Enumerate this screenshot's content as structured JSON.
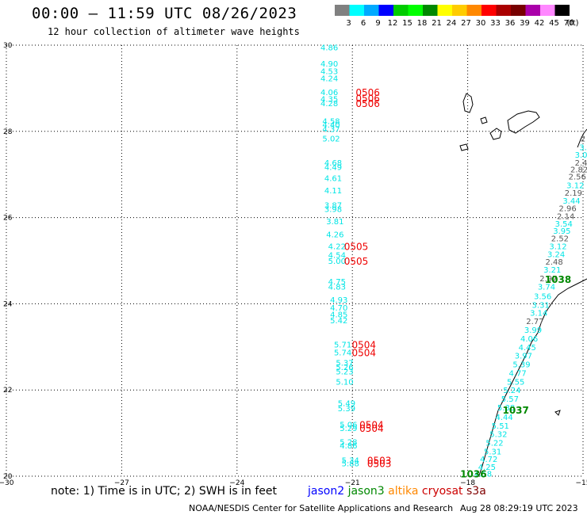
{
  "header": {
    "title": "00:00 – 11:59 UTC 08/26/2023",
    "subtitle": "12 hour collection of altimeter wave heights"
  },
  "legend": {
    "unit": "(ft)",
    "bins": [
      {
        "label": "3",
        "color": "#808080"
      },
      {
        "label": "6",
        "color": "#00ffff"
      },
      {
        "label": "9",
        "color": "#00aaff"
      },
      {
        "label": "12",
        "color": "#0000ff"
      },
      {
        "label": "15",
        "color": "#00cc00"
      },
      {
        "label": "18",
        "color": "#00ff00"
      },
      {
        "label": "21",
        "color": "#008800"
      },
      {
        "label": "24",
        "color": "#ffff00"
      },
      {
        "label": "27",
        "color": "#ffcc00"
      },
      {
        "label": "30",
        "color": "#ff8800"
      },
      {
        "label": "33",
        "color": "#ff0000"
      },
      {
        "label": "36",
        "color": "#aa0000"
      },
      {
        "label": "39",
        "color": "#770000"
      },
      {
        "label": "42",
        "color": "#aa00aa"
      },
      {
        "label": "45",
        "color": "#ff88ff"
      },
      {
        "label": "70",
        "color": "#000000"
      }
    ]
  },
  "axes": {
    "lon_labels": [
      "−30",
      "−27",
      "−24",
      "−21",
      "−18",
      "−15"
    ],
    "lat_labels": [
      "20",
      "22",
      "24",
      "26",
      "28",
      "30"
    ],
    "lon_range": [
      -30,
      -15
    ],
    "lat_range": [
      20,
      30
    ]
  },
  "colors": {
    "jason2": "#0000ff",
    "jason3": "#008800",
    "altika": "#ff8800",
    "cryosat": "#cc0000",
    "s3a": "#800000",
    "cyan_track": "#00e5e5",
    "gray_track": "#555555",
    "time_red": "#ee0000",
    "time_green": "#008800"
  },
  "footer": {
    "note": "note:  1) Time is in UTC; 2) SWH is in feet",
    "missions": [
      "jason2",
      "jason3",
      "altika",
      "cryosat",
      "s3a"
    ],
    "credit": "NOAA/NESDIS Center for Satellite Applications and Research",
    "timestamp": "Aug 28 08:29:19 UTC 2023"
  },
  "chart_data": {
    "type": "scatter",
    "track_west": [
      {
        "lon": -21.6,
        "lat": 29.95,
        "swh": "4.86"
      },
      {
        "lon": -21.6,
        "lat": 29.58,
        "swh": "4.90"
      },
      {
        "lon": -21.6,
        "lat": 29.4,
        "swh": "4.53"
      },
      {
        "lon": -21.6,
        "lat": 29.24,
        "swh": "4.24"
      },
      {
        "lon": -21.6,
        "lat": 28.92,
        "swh": "4.06"
      },
      {
        "lon": -21.6,
        "lat": 28.76,
        "swh": "4.35"
      },
      {
        "lon": -21.6,
        "lat": 28.66,
        "swh": "4.28"
      },
      {
        "lon": -21.55,
        "lat": 28.24,
        "swh": "4.58"
      },
      {
        "lon": -21.55,
        "lat": 28.16,
        "swh": "4.40"
      },
      {
        "lon": -21.55,
        "lat": 28.06,
        "swh": "4.37"
      },
      {
        "lon": -21.55,
        "lat": 27.84,
        "swh": "5.02"
      },
      {
        "lon": -21.5,
        "lat": 27.28,
        "swh": "4.68"
      },
      {
        "lon": -21.5,
        "lat": 27.18,
        "swh": "4.49"
      },
      {
        "lon": -21.5,
        "lat": 26.92,
        "swh": "4.61"
      },
      {
        "lon": -21.5,
        "lat": 26.64,
        "swh": "4.11"
      },
      {
        "lon": -21.5,
        "lat": 26.3,
        "swh": "3.87"
      },
      {
        "lon": -21.5,
        "lat": 26.2,
        "swh": "3.98"
      },
      {
        "lon": -21.45,
        "lat": 25.92,
        "swh": "3.81"
      },
      {
        "lon": -21.45,
        "lat": 25.62,
        "swh": "4.26"
      },
      {
        "lon": -21.4,
        "lat": 25.34,
        "swh": "4.22"
      },
      {
        "lon": -21.4,
        "lat": 25.14,
        "swh": "4.54"
      },
      {
        "lon": -21.4,
        "lat": 25.0,
        "swh": "5.00"
      },
      {
        "lon": -21.4,
        "lat": 24.52,
        "swh": "4.75"
      },
      {
        "lon": -21.4,
        "lat": 24.4,
        "swh": "4.83"
      },
      {
        "lon": -21.35,
        "lat": 24.1,
        "swh": "4.93"
      },
      {
        "lon": -21.35,
        "lat": 23.92,
        "swh": "4.70"
      },
      {
        "lon": -21.35,
        "lat": 23.76,
        "swh": "4.85"
      },
      {
        "lon": -21.35,
        "lat": 23.62,
        "swh": "5.42"
      },
      {
        "lon": -21.25,
        "lat": 23.06,
        "swh": "5.71"
      },
      {
        "lon": -21.25,
        "lat": 22.88,
        "swh": "5.74"
      },
      {
        "lon": -21.2,
        "lat": 22.64,
        "swh": "5.37"
      },
      {
        "lon": -21.2,
        "lat": 22.54,
        "swh": "5.26"
      },
      {
        "lon": -21.2,
        "lat": 22.44,
        "swh": "5.23"
      },
      {
        "lon": -21.2,
        "lat": 22.2,
        "swh": "5.10"
      },
      {
        "lon": -21.15,
        "lat": 21.7,
        "swh": "5.49"
      },
      {
        "lon": -21.15,
        "lat": 21.58,
        "swh": "5.39"
      },
      {
        "lon": -21.1,
        "lat": 21.2,
        "swh": "5.06"
      },
      {
        "lon": -21.1,
        "lat": 21.12,
        "swh": "5.29"
      },
      {
        "lon": -21.1,
        "lat": 20.8,
        "swh": "5.28"
      },
      {
        "lon": -21.1,
        "lat": 20.72,
        "swh": "4.86"
      },
      {
        "lon": -21.05,
        "lat": 20.38,
        "swh": "5.34"
      },
      {
        "lon": -21.05,
        "lat": 20.3,
        "swh": "5.88"
      }
    ],
    "track_east": [
      {
        "lon": -15.0,
        "lat": 27.84,
        "swh": "2",
        "c": "gray"
      },
      {
        "lon": -15.0,
        "lat": 27.64,
        "swh": "3.",
        "c": "cyan"
      },
      {
        "lon": -15.05,
        "lat": 27.46,
        "swh": "3.0",
        "c": "cyan"
      },
      {
        "lon": -15.05,
        "lat": 27.28,
        "swh": "2.4",
        "c": "gray"
      },
      {
        "lon": -15.1,
        "lat": 27.12,
        "swh": "2.82",
        "c": "gray"
      },
      {
        "lon": -15.15,
        "lat": 26.96,
        "swh": "2.56",
        "c": "gray"
      },
      {
        "lon": -15.2,
        "lat": 26.76,
        "swh": "3.12",
        "c": "cyan"
      },
      {
        "lon": -15.25,
        "lat": 26.58,
        "swh": "2.19",
        "c": "gray"
      },
      {
        "lon": -15.3,
        "lat": 26.4,
        "swh": "3.44",
        "c": "cyan"
      },
      {
        "lon": -15.4,
        "lat": 26.22,
        "swh": "2.96",
        "c": "gray"
      },
      {
        "lon": -15.45,
        "lat": 26.04,
        "swh": "2.14",
        "c": "gray"
      },
      {
        "lon": -15.5,
        "lat": 25.86,
        "swh": "3.54",
        "c": "cyan"
      },
      {
        "lon": -15.55,
        "lat": 25.7,
        "swh": "3.95",
        "c": "cyan"
      },
      {
        "lon": -15.6,
        "lat": 25.52,
        "swh": "2.52",
        "c": "gray"
      },
      {
        "lon": -15.65,
        "lat": 25.34,
        "swh": "3.12",
        "c": "cyan"
      },
      {
        "lon": -15.7,
        "lat": 25.16,
        "swh": "3.24",
        "c": "cyan"
      },
      {
        "lon": -15.75,
        "lat": 24.98,
        "swh": "2.48",
        "c": "gray"
      },
      {
        "lon": -15.8,
        "lat": 24.8,
        "swh": "3.21",
        "c": "cyan"
      },
      {
        "lon": -15.9,
        "lat": 24.6,
        "swh": "2.97",
        "c": "gray"
      },
      {
        "lon": -15.95,
        "lat": 24.4,
        "swh": "3.74",
        "c": "cyan"
      },
      {
        "lon": -16.05,
        "lat": 24.18,
        "swh": "3.56",
        "c": "cyan"
      },
      {
        "lon": -16.1,
        "lat": 23.98,
        "swh": "3.31",
        "c": "cyan"
      },
      {
        "lon": -16.15,
        "lat": 23.8,
        "swh": "3.14",
        "c": "cyan"
      },
      {
        "lon": -16.25,
        "lat": 23.6,
        "swh": "2.77",
        "c": "gray"
      },
      {
        "lon": -16.3,
        "lat": 23.4,
        "swh": "3.99",
        "c": "cyan"
      },
      {
        "lon": -16.4,
        "lat": 23.2,
        "swh": "4.06",
        "c": "cyan"
      },
      {
        "lon": -16.45,
        "lat": 23.0,
        "swh": "4.45",
        "c": "cyan"
      },
      {
        "lon": -16.55,
        "lat": 22.8,
        "swh": "3.97",
        "c": "cyan"
      },
      {
        "lon": -16.6,
        "lat": 22.6,
        "swh": "5.39",
        "c": "cyan"
      },
      {
        "lon": -16.7,
        "lat": 22.4,
        "swh": "4.77",
        "c": "cyan"
      },
      {
        "lon": -16.75,
        "lat": 22.2,
        "swh": "5.55",
        "c": "cyan"
      },
      {
        "lon": -16.85,
        "lat": 22.0,
        "swh": "5.24",
        "c": "cyan"
      },
      {
        "lon": -16.9,
        "lat": 21.8,
        "swh": "5.57",
        "c": "cyan"
      },
      {
        "lon": -17.0,
        "lat": 21.6,
        "swh": "5.38",
        "c": "cyan"
      },
      {
        "lon": -17.05,
        "lat": 21.38,
        "swh": "4.44",
        "c": "cyan"
      },
      {
        "lon": -17.15,
        "lat": 21.18,
        "swh": "5.51",
        "c": "cyan"
      },
      {
        "lon": -17.2,
        "lat": 20.98,
        "swh": "5.32",
        "c": "cyan"
      },
      {
        "lon": -17.3,
        "lat": 20.78,
        "swh": "5.22",
        "c": "cyan"
      },
      {
        "lon": -17.35,
        "lat": 20.58,
        "swh": "5.31",
        "c": "cyan"
      },
      {
        "lon": -17.45,
        "lat": 20.4,
        "swh": "4.72",
        "c": "cyan"
      },
      {
        "lon": -17.5,
        "lat": 20.22,
        "swh": "4.25",
        "c": "cyan"
      },
      {
        "lon": -17.6,
        "lat": 20.06,
        "swh": "4.58",
        "c": "cyan"
      }
    ],
    "time_labels": [
      {
        "text": "0506",
        "lon": -20.6,
        "lat": 28.92,
        "c": "red"
      },
      {
        "text": "0506",
        "lon": -20.6,
        "lat": 28.78,
        "c": "red"
      },
      {
        "text": "0506",
        "lon": -20.6,
        "lat": 28.66,
        "c": "red"
      },
      {
        "text": "0505",
        "lon": -20.9,
        "lat": 25.34,
        "c": "red"
      },
      {
        "text": "0505",
        "lon": -20.9,
        "lat": 25.0,
        "c": "red"
      },
      {
        "text": "0504",
        "lon": -20.7,
        "lat": 23.06,
        "c": "red"
      },
      {
        "text": "0504",
        "lon": -20.7,
        "lat": 22.88,
        "c": "red"
      },
      {
        "text": "0504",
        "lon": -20.5,
        "lat": 21.2,
        "c": "red"
      },
      {
        "text": "0504",
        "lon": -20.5,
        "lat": 21.12,
        "c": "red"
      },
      {
        "text": "0503",
        "lon": -20.3,
        "lat": 20.38,
        "c": "red"
      },
      {
        "text": "0503",
        "lon": -20.3,
        "lat": 20.3,
        "c": "red"
      },
      {
        "text": "1038",
        "lon": -15.65,
        "lat": 24.58,
        "c": "green"
      },
      {
        "text": "1037",
        "lon": -16.75,
        "lat": 21.54,
        "c": "green"
      },
      {
        "text": "1036",
        "lon": -17.85,
        "lat": 20.06,
        "c": "green"
      }
    ]
  }
}
